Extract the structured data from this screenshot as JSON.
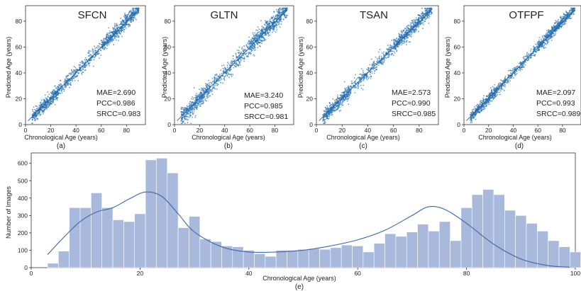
{
  "chart_data": [
    {
      "type": "scatter",
      "title": "SFCN",
      "xlabel": "Chronological Age (years)",
      "ylabel": "Predicted Age (years)",
      "caption": "(a)",
      "xlim": [
        0,
        95
      ],
      "ylim": [
        0,
        92
      ],
      "xticks": [
        0,
        20,
        40,
        60,
        80
      ],
      "yticks": [
        0,
        20,
        40,
        60,
        80
      ],
      "metrics": [
        "MAE=2.690",
        "PCC=0.986",
        "SRCC=0.983"
      ],
      "mae": 2.69,
      "pcc": 0.986,
      "color": "#2e75b6",
      "fit_line": {
        "x": [
          2,
          90
        ],
        "y": [
          3,
          89
        ]
      }
    },
    {
      "type": "scatter",
      "title": "GLTN",
      "xlabel": "Chronological Age (years)",
      "ylabel": "Predicted Age (years)",
      "caption": "(b)",
      "xlim": [
        0,
        95
      ],
      "ylim": [
        0,
        92
      ],
      "xticks": [
        0,
        20,
        40,
        60,
        80
      ],
      "yticks": [
        0,
        20,
        40,
        60,
        80
      ],
      "metrics": [
        "MAE=3.240",
        "PCC=0.985",
        "SRCC=0.981"
      ],
      "mae": 3.24,
      "pcc": 0.985,
      "color": "#2e75b6",
      "fit_line": {
        "x": [
          2,
          90
        ],
        "y": [
          3,
          89
        ]
      }
    },
    {
      "type": "scatter",
      "title": "TSAN",
      "xlabel": "Chronological Age (years)",
      "ylabel": "Predicted Age (years)",
      "caption": "(c)",
      "xlim": [
        0,
        95
      ],
      "ylim": [
        0,
        92
      ],
      "xticks": [
        0,
        20,
        40,
        60,
        80
      ],
      "yticks": [
        0,
        20,
        40,
        60,
        80
      ],
      "metrics": [
        "MAE=2.573",
        "PCC=0.990",
        "SRCC=0.985"
      ],
      "mae": 2.573,
      "pcc": 0.99,
      "color": "#2e75b6",
      "fit_line": {
        "x": [
          2,
          90
        ],
        "y": [
          3,
          89
        ]
      }
    },
    {
      "type": "scatter",
      "title": "OTFPF",
      "xlabel": "Chronological Age (years)",
      "ylabel": "Predicted Age (years)",
      "caption": "(d)",
      "xlim": [
        0,
        95
      ],
      "ylim": [
        0,
        92
      ],
      "xticks": [
        0,
        20,
        40,
        60,
        80
      ],
      "yticks": [
        0,
        20,
        40,
        60,
        80
      ],
      "metrics": [
        "MAE=2.097",
        "PCC=0.993",
        "SRCC=0.989"
      ],
      "mae": 2.097,
      "pcc": 0.993,
      "color": "#2e75b6",
      "fit_line": {
        "x": [
          2,
          90
        ],
        "y": [
          3,
          89
        ]
      }
    },
    {
      "type": "bar",
      "xlabel": "Chronological Age (years)",
      "ylabel": "Number of Images",
      "caption": "(e)",
      "xlim": [
        0,
        100
      ],
      "ylim": [
        0,
        660
      ],
      "xticks": [
        0,
        20,
        40,
        60,
        80,
        100
      ],
      "yticks": [
        0,
        100,
        200,
        300,
        400,
        500,
        600
      ],
      "bin_start": 3,
      "bin_width": 2,
      "values": [
        25,
        95,
        345,
        345,
        430,
        345,
        275,
        265,
        310,
        620,
        630,
        545,
        230,
        295,
        165,
        150,
        125,
        120,
        100,
        80,
        65,
        100,
        100,
        105,
        110,
        105,
        115,
        130,
        125,
        90,
        140,
        195,
        180,
        205,
        250,
        210,
        265,
        155,
        345,
        420,
        450,
        420,
        330,
        300,
        255,
        210,
        155,
        120,
        90,
        40,
        12
      ],
      "bar_color": "#a9b9dc",
      "kde": {
        "x": [
          3,
          6,
          9,
          12,
          15,
          18,
          21,
          24,
          27,
          30,
          35,
          40,
          45,
          50,
          55,
          60,
          65,
          70,
          73,
          76,
          80,
          85,
          90,
          95,
          99
        ],
        "y": [
          75,
          175,
          265,
          320,
          345,
          395,
          435,
          410,
          310,
          205,
          120,
          90,
          90,
          100,
          125,
          160,
          215,
          300,
          350,
          335,
          255,
          135,
          50,
          12,
          3
        ]
      },
      "kde_color": "#3b68ad"
    }
  ]
}
